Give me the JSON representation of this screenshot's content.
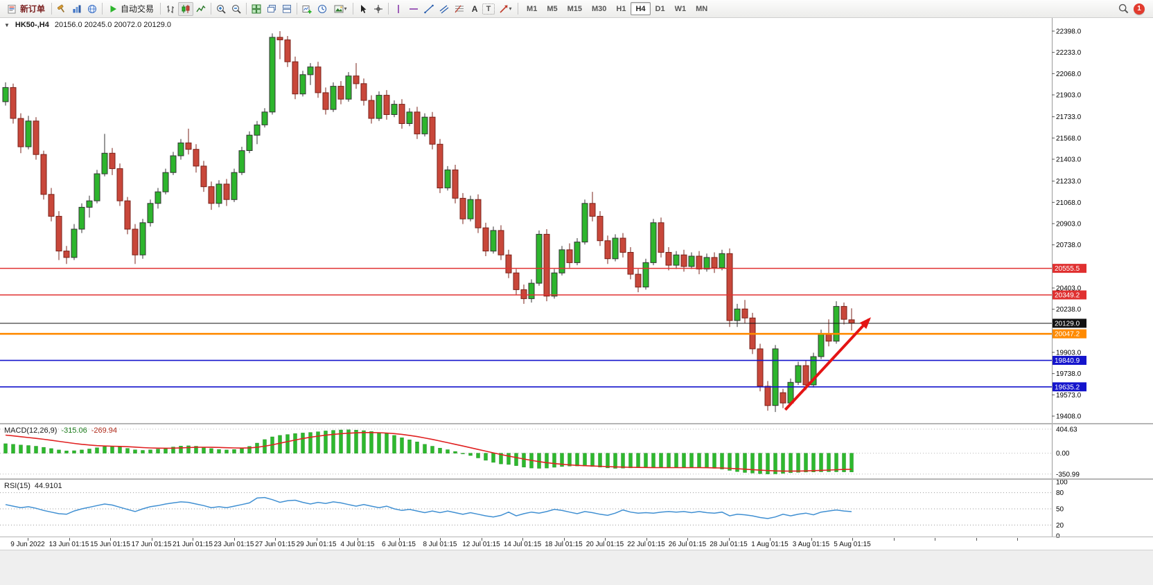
{
  "toolbar": {
    "new_order_label": "新订单",
    "autotrading_label": "自动交易",
    "timeframes": [
      "M1",
      "M5",
      "M15",
      "M30",
      "H1",
      "H4",
      "D1",
      "W1",
      "MN"
    ],
    "active_timeframe": "H4",
    "notification_count": "1"
  },
  "chart": {
    "symbol_period": "HK50-,H4",
    "ohlc_text": "20156.0 20245.0 20072.0 20129.0"
  },
  "chart_data": {
    "type": "candlestick",
    "symbol": "HK50-",
    "timeframe": "H4",
    "colors": {
      "up_body": "#2db52d",
      "up_edge": "#333333",
      "down_body": "#c8473a",
      "down_edge": "#7a2219",
      "macd_histogram": "#2eb82e",
      "macd_signal": "#e02020",
      "rsi_line": "#3f8fd2",
      "arrow": "#e41414"
    },
    "price_axis": {
      "min": 19349,
      "max": 22500,
      "labels": [
        "22398.0",
        "22233.0",
        "22068.0",
        "21903.0",
        "21733.0",
        "21568.0",
        "21403.0",
        "21233.0",
        "21068.0",
        "20903.0",
        "20738.0",
        "20403.0",
        "20238.0",
        "19903.0",
        "19738.0",
        "19573.0",
        "19408.0"
      ]
    },
    "hlines": [
      {
        "price": 20555.5,
        "tag": "20555.5",
        "color": "#e03030",
        "width": 1.6
      },
      {
        "price": 20349.2,
        "tag": "20349.2",
        "color": "#e03030",
        "width": 1.6
      },
      {
        "price": 20129.0,
        "tag": "20129.0",
        "color": "#111111",
        "width": 1
      },
      {
        "price": 20047.2,
        "tag": "20047.2",
        "color": "#ff8a00",
        "width": 2.6
      },
      {
        "price": 19840.9,
        "tag": "19840.9",
        "color": "#1414cc",
        "width": 1.6
      },
      {
        "price": 19635.2,
        "tag": "19635.2",
        "color": "#1414cc",
        "width": 1.6
      }
    ],
    "arrow": {
      "from_index": 102.3,
      "from_price": 19457,
      "to_index": 113.3,
      "to_price": 20160
    },
    "time_labels": [
      "9 Jun 2022",
      "13 Jun 01:15",
      "15 Jun 01:15",
      "17 Jun 01:15",
      "21 Jun 01:15",
      "23 Jun 01:15",
      "27 Jun 01:15",
      "29 Jun 01:15",
      "4 Jul 01:15",
      "6 Jul 01:15",
      "8 Jul 01:15",
      "12 Jul 01:15",
      "14 Jul 01:15",
      "18 Jul 01:15",
      "20 Jul 01:15",
      "22 Jul 01:15",
      "26 Jul 01:15",
      "28 Jul 01:15",
      "1 Aug 01:15",
      "3 Aug 01:15",
      "5 Aug 01:15"
    ],
    "candles": [
      [
        21850,
        22000,
        21820,
        21960
      ],
      [
        21960,
        21990,
        21680,
        21720
      ],
      [
        21720,
        21760,
        21450,
        21500
      ],
      [
        21500,
        21740,
        21480,
        21700
      ],
      [
        21700,
        21730,
        21400,
        21440
      ],
      [
        21440,
        21470,
        21090,
        21130
      ],
      [
        21130,
        21180,
        20920,
        20960
      ],
      [
        20960,
        21000,
        20620,
        20690
      ],
      [
        20690,
        20730,
        20590,
        20640
      ],
      [
        20640,
        20900,
        20620,
        20860
      ],
      [
        20860,
        21060,
        20830,
        21030
      ],
      [
        21030,
        21120,
        20950,
        21080
      ],
      [
        21080,
        21320,
        21060,
        21290
      ],
      [
        21290,
        21600,
        21270,
        21450
      ],
      [
        21450,
        21490,
        21280,
        21330
      ],
      [
        21330,
        21370,
        21040,
        21080
      ],
      [
        21080,
        21110,
        20820,
        20860
      ],
      [
        20860,
        20900,
        20590,
        20660
      ],
      [
        20660,
        20940,
        20630,
        20910
      ],
      [
        20910,
        21090,
        20880,
        21060
      ],
      [
        21060,
        21180,
        21020,
        21150
      ],
      [
        21150,
        21330,
        21130,
        21300
      ],
      [
        21300,
        21460,
        21280,
        21430
      ],
      [
        21430,
        21560,
        21400,
        21530
      ],
      [
        21530,
        21640,
        21440,
        21480
      ],
      [
        21480,
        21520,
        21300,
        21350
      ],
      [
        21350,
        21390,
        21150,
        21190
      ],
      [
        21190,
        21230,
        21010,
        21060
      ],
      [
        21060,
        21240,
        21030,
        21210
      ],
      [
        21210,
        21250,
        21040,
        21090
      ],
      [
        21090,
        21330,
        21070,
        21300
      ],
      [
        21300,
        21500,
        21280,
        21470
      ],
      [
        21470,
        21620,
        21450,
        21590
      ],
      [
        21590,
        21700,
        21520,
        21670
      ],
      [
        21670,
        21800,
        21650,
        21770
      ],
      [
        21770,
        22380,
        21750,
        22350
      ],
      [
        22350,
        22398,
        22180,
        22330
      ],
      [
        22330,
        22360,
        22120,
        22160
      ],
      [
        22160,
        22200,
        21870,
        21910
      ],
      [
        21910,
        22090,
        21890,
        22060
      ],
      [
        22060,
        22150,
        21980,
        22120
      ],
      [
        22120,
        22160,
        21880,
        21920
      ],
      [
        21920,
        21960,
        21750,
        21790
      ],
      [
        21790,
        22000,
        21770,
        21970
      ],
      [
        21970,
        22010,
        21830,
        21870
      ],
      [
        21870,
        22080,
        21850,
        22050
      ],
      [
        22050,
        22150,
        21950,
        21990
      ],
      [
        21990,
        22030,
        21820,
        21860
      ],
      [
        21860,
        21900,
        21680,
        21720
      ],
      [
        21720,
        21930,
        21700,
        21900
      ],
      [
        21900,
        21940,
        21710,
        21750
      ],
      [
        21750,
        21860,
        21730,
        21830
      ],
      [
        21830,
        21870,
        21640,
        21680
      ],
      [
        21680,
        21800,
        21660,
        21770
      ],
      [
        21770,
        21810,
        21560,
        21600
      ],
      [
        21600,
        21760,
        21580,
        21730
      ],
      [
        21730,
        21770,
        21480,
        21520
      ],
      [
        21520,
        21560,
        21140,
        21180
      ],
      [
        21180,
        21350,
        21160,
        21320
      ],
      [
        21320,
        21360,
        21060,
        21100
      ],
      [
        21100,
        21140,
        20900,
        20940
      ],
      [
        20940,
        21120,
        20920,
        21090
      ],
      [
        21090,
        21130,
        20830,
        20870
      ],
      [
        20870,
        20910,
        20650,
        20690
      ],
      [
        20690,
        20880,
        20670,
        20850
      ],
      [
        20850,
        20890,
        20620,
        20660
      ],
      [
        20660,
        20700,
        20480,
        20520
      ],
      [
        20520,
        20550,
        20350,
        20390
      ],
      [
        20390,
        20430,
        20280,
        20320
      ],
      [
        20320,
        20470,
        20290,
        20440
      ],
      [
        20440,
        20850,
        20420,
        20820
      ],
      [
        20820,
        20860,
        20300,
        20340
      ],
      [
        20340,
        20550,
        20320,
        20520
      ],
      [
        20520,
        20730,
        20500,
        20700
      ],
      [
        20700,
        20750,
        20560,
        20600
      ],
      [
        20600,
        20790,
        20580,
        20760
      ],
      [
        20760,
        21090,
        20740,
        21060
      ],
      [
        21060,
        21150,
        20920,
        20960
      ],
      [
        20960,
        21000,
        20730,
        20770
      ],
      [
        20770,
        20810,
        20590,
        20630
      ],
      [
        20630,
        20820,
        20610,
        20790
      ],
      [
        20790,
        20830,
        20640,
        20680
      ],
      [
        20680,
        20720,
        20470,
        20510
      ],
      [
        20510,
        20550,
        20370,
        20410
      ],
      [
        20410,
        20630,
        20390,
        20600
      ],
      [
        20600,
        20940,
        20580,
        20910
      ],
      [
        20910,
        20950,
        20640,
        20680
      ],
      [
        20680,
        20720,
        20540,
        20580
      ],
      [
        20580,
        20690,
        20550,
        20660
      ],
      [
        20660,
        20700,
        20530,
        20570
      ],
      [
        20570,
        20680,
        20550,
        20650
      ],
      [
        20650,
        20690,
        20510,
        20550
      ],
      [
        20550,
        20670,
        20530,
        20640
      ],
      [
        20640,
        20680,
        20520,
        20560
      ],
      [
        20560,
        20700,
        20540,
        20670
      ],
      [
        20670,
        20710,
        20100,
        20150
      ],
      [
        20150,
        20280,
        20100,
        20240
      ],
      [
        20240,
        20310,
        20130,
        20170
      ],
      [
        20170,
        20210,
        19890,
        19930
      ],
      [
        19930,
        19970,
        19600,
        19640
      ],
      [
        19640,
        19680,
        19450,
        19490
      ],
      [
        19490,
        19960,
        19440,
        19930
      ],
      [
        19590,
        19620,
        19470,
        19510
      ],
      [
        19510,
        19700,
        19490,
        19670
      ],
      [
        19670,
        19830,
        19650,
        19800
      ],
      [
        19800,
        19840,
        19610,
        19650
      ],
      [
        19650,
        19900,
        19630,
        19870
      ],
      [
        19870,
        20080,
        19850,
        20050
      ],
      [
        20050,
        20160,
        19950,
        19990
      ],
      [
        19990,
        20300,
        19970,
        20260
      ],
      [
        20260,
        20290,
        20120,
        20160
      ],
      [
        20156,
        20245,
        20072,
        20129
      ]
    ],
    "indicators": {
      "macd": {
        "label": "MACD(12,26,9)",
        "value_main": "-315.06",
        "value_signal": "-269.94",
        "axis_labels": [
          "404.63",
          "0.00",
          "-350.99"
        ],
        "axis_values": [
          404.63,
          0,
          -350.99
        ],
        "range": [
          -400,
          450
        ],
        "histogram": [
          160,
          150,
          138,
          130,
          118,
          100,
          78,
          55,
          40,
          42,
          55,
          72,
          92,
          110,
          118,
          105,
          82,
          58,
          48,
          56,
          70,
          88,
          105,
          120,
          125,
          118,
          100,
          78,
          62,
          55,
          62,
          82,
          115,
          170,
          230,
          275,
          300,
          315,
          330,
          340,
          350,
          362,
          375,
          385,
          392,
          395,
          390,
          380,
          365,
          345,
          330,
          300,
          260,
          225,
          190,
          150,
          118,
          85,
          60,
          30,
          -5,
          -40,
          -80,
          -120,
          -155,
          -180,
          -190,
          -210,
          -235,
          -250,
          -255,
          -250,
          -238,
          -225,
          -218,
          -215,
          -218,
          -225,
          -235,
          -248,
          -255,
          -252,
          -248,
          -245,
          -242,
          -240,
          -238,
          -236,
          -235,
          -236,
          -238,
          -242,
          -248,
          -255,
          -268,
          -290,
          -310,
          -325,
          -335,
          -345,
          -351,
          -348,
          -340,
          -330,
          -322,
          -318,
          -315,
          -313,
          -312,
          -313,
          -314,
          -315
        ],
        "signal": [
          305,
          292,
          278,
          264,
          250,
          235,
          218,
          200,
          182,
          165,
          150,
          138,
          128,
          122,
          118,
          115,
          110,
          103,
          95,
          89,
          85,
          84,
          86,
          90,
          95,
          99,
          101,
          100,
          97,
          93,
          89,
          87,
          90,
          100,
          118,
          142,
          168,
          195,
          222,
          247,
          268,
          287,
          303,
          317,
          328,
          337,
          343,
          347,
          348,
          345,
          339,
          330,
          317,
          300,
          280,
          257,
          232,
          205,
          178,
          150,
          122,
          93,
          64,
          35,
          6,
          -22,
          -48,
          -73,
          -97,
          -120,
          -141,
          -159,
          -174,
          -186,
          -196,
          -204,
          -210,
          -215,
          -220,
          -225,
          -230,
          -234,
          -237,
          -239,
          -241,
          -242,
          -243,
          -243,
          -243,
          -243,
          -243,
          -243,
          -244,
          -246,
          -249,
          -254,
          -261,
          -269,
          -277,
          -285,
          -292,
          -297,
          -300,
          -301,
          -300,
          -297,
          -293,
          -288,
          -283,
          -278,
          -273,
          -270
        ]
      },
      "rsi": {
        "label": "RSI(15)",
        "value": "44.9101",
        "axis_labels": [
          "100",
          "80",
          "50",
          "20",
          "0"
        ],
        "levels": [
          80,
          50,
          20
        ],
        "range": [
          0,
          100
        ],
        "values": [
          58,
          55,
          52,
          54,
          51,
          47,
          44,
          41,
          40,
          46,
          50,
          53,
          56,
          59,
          57,
          53,
          49,
          45,
          50,
          54,
          56,
          59,
          61,
          63,
          62,
          59,
          56,
          52,
          54,
          52,
          55,
          58,
          61,
          70,
          71,
          67,
          62,
          65,
          66,
          62,
          59,
          62,
          60,
          63,
          61,
          58,
          55,
          58,
          55,
          52,
          55,
          50,
          47,
          49,
          46,
          43,
          46,
          43,
          46,
          43,
          40,
          43,
          40,
          37,
          35,
          38,
          44,
          37,
          41,
          44,
          42,
          45,
          49,
          47,
          44,
          41,
          45,
          43,
          40,
          38,
          42,
          48,
          44,
          42,
          43,
          42,
          44,
          45,
          44,
          45,
          43,
          45,
          43,
          42,
          44,
          37,
          40,
          39,
          37,
          34,
          32,
          35,
          40,
          37,
          40,
          42,
          39,
          44,
          46,
          48,
          46,
          44.91
        ]
      }
    }
  }
}
